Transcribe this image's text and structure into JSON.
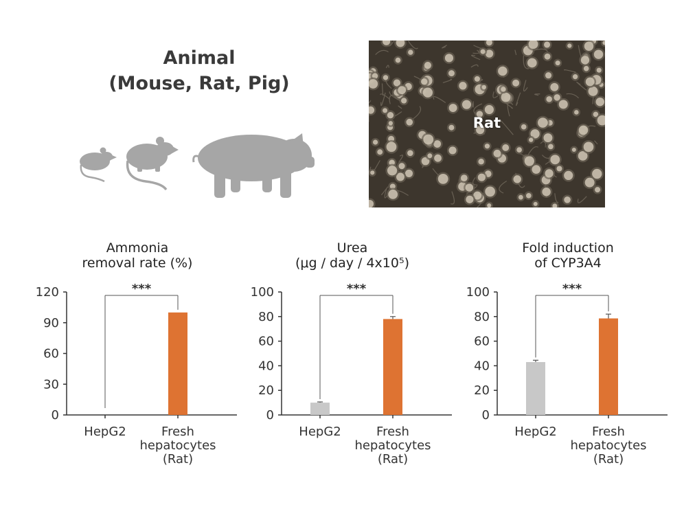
{
  "heading": {
    "line1": "Animal",
    "line2": "(Mouse, Rat, Pig)"
  },
  "icons": [
    "mouse-icon",
    "rat-icon",
    "pig-icon"
  ],
  "photo": {
    "label": "Rat"
  },
  "colors": {
    "fresh": "#de7332",
    "hepg2": "#c8c8c8",
    "icon": "#a6a6a6"
  },
  "chart_data": [
    {
      "type": "bar",
      "title_lines": [
        "Ammonia",
        "removal rate (%)"
      ],
      "categories": [
        [
          "HepG2"
        ],
        [
          "Fresh",
          "hepatocytes",
          "(Rat)"
        ]
      ],
      "values": [
        0,
        100
      ],
      "errors": [
        0,
        0
      ],
      "ylim": [
        0,
        120
      ],
      "yticks": [
        0,
        30,
        60,
        90,
        120
      ],
      "significance": "***",
      "grid": false
    },
    {
      "type": "bar",
      "title_lines": [
        "Urea",
        "(μg / day / 4x10⁵)"
      ],
      "categories": [
        [
          "HepG2"
        ],
        [
          "Fresh",
          "hepatocytes",
          "(Rat)"
        ]
      ],
      "values": [
        10,
        78
      ],
      "errors": [
        0.6,
        2
      ],
      "ylim": [
        0,
        100
      ],
      "yticks": [
        0,
        20,
        40,
        60,
        80,
        100
      ],
      "significance": "***",
      "grid": false
    },
    {
      "type": "bar",
      "title_lines": [
        "Fold induction",
        "of CYP3A4"
      ],
      "categories": [
        [
          "HepG2"
        ],
        [
          "Fresh",
          "hepatocytes",
          "(Rat)"
        ]
      ],
      "values": [
        43,
        78.5
      ],
      "errors": [
        1.5,
        3.5
      ],
      "ylim": [
        0,
        100
      ],
      "yticks": [
        0,
        20,
        40,
        60,
        80,
        100
      ],
      "significance": "***",
      "grid": false
    }
  ]
}
